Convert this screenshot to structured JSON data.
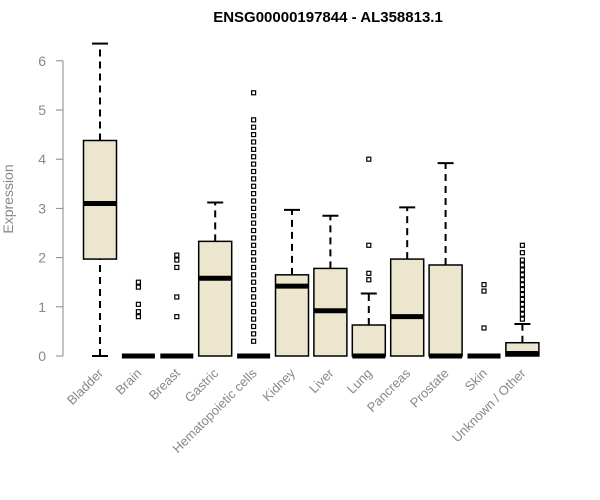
{
  "chart_data": {
    "type": "box",
    "title": "ENSG00000197844 - AL358813.1",
    "ylabel": "Expression",
    "xlabel": "",
    "ylim": [
      0,
      6.3
    ],
    "yticks": [
      0,
      1,
      2,
      3,
      4,
      5,
      6
    ],
    "box_fill": "#EDE6CF",
    "box_stroke": "#000000",
    "categories": [
      "Bladder",
      "Brain",
      "Breast",
      "Gastric",
      "Hematopoietic cells",
      "Kidney",
      "Liver",
      "Lung",
      "Pancreas",
      "Prostate",
      "Skin",
      "Unknown / Other"
    ],
    "boxes": [
      {
        "category": "Bladder",
        "min": 0.0,
        "q1": 1.97,
        "median": 3.1,
        "q3": 4.38,
        "max": 6.35,
        "outliers": []
      },
      {
        "category": "Brain",
        "min": 0.0,
        "q1": 0.0,
        "median": 0.0,
        "q3": 0.0,
        "max": 0.0,
        "outliers": [
          0.8,
          0.9,
          1.05,
          1.4,
          1.5
        ]
      },
      {
        "category": "Breast",
        "min": 0.0,
        "q1": 0.0,
        "median": 0.0,
        "q3": 0.0,
        "max": 0.0,
        "outliers": [
          0.8,
          1.2,
          1.8,
          1.95,
          2.05
        ]
      },
      {
        "category": "Gastric",
        "min": 0.0,
        "q1": 0.0,
        "median": 1.58,
        "q3": 2.33,
        "max": 3.12,
        "outliers": []
      },
      {
        "category": "Hematopoietic cells",
        "min": 0.0,
        "q1": 0.0,
        "median": 0.0,
        "q3": 0.0,
        "max": 0.0,
        "outliers": [
          0.3,
          0.45,
          0.6,
          0.75,
          0.9,
          1.05,
          1.2,
          1.35,
          1.5,
          1.65,
          1.8,
          1.95,
          2.1,
          2.25,
          2.4,
          2.55,
          2.7,
          2.85,
          3.0,
          3.15,
          3.3,
          3.45,
          3.6,
          3.75,
          3.9,
          4.05,
          4.2,
          4.35,
          4.5,
          4.65,
          4.8,
          5.35
        ]
      },
      {
        "category": "Kidney",
        "min": 0.0,
        "q1": 0.0,
        "median": 1.42,
        "q3": 1.65,
        "max": 2.97,
        "outliers": []
      },
      {
        "category": "Liver",
        "min": 0.0,
        "q1": 0.0,
        "median": 0.92,
        "q3": 1.78,
        "max": 2.85,
        "outliers": []
      },
      {
        "category": "Lung",
        "min": 0.0,
        "q1": 0.0,
        "median": 0.0,
        "q3": 0.63,
        "max": 1.27,
        "outliers": [
          1.55,
          1.68,
          2.25,
          4.0
        ]
      },
      {
        "category": "Pancreas",
        "min": 0.0,
        "q1": 0.0,
        "median": 0.8,
        "q3": 1.97,
        "max": 3.02,
        "outliers": []
      },
      {
        "category": "Prostate",
        "min": 0.0,
        "q1": 0.0,
        "median": 0.0,
        "q3": 1.85,
        "max": 3.92,
        "outliers": []
      },
      {
        "category": "Skin",
        "min": 0.0,
        "q1": 0.0,
        "median": 0.0,
        "q3": 0.0,
        "max": 0.0,
        "outliers": [
          0.57,
          1.32,
          1.45
        ]
      },
      {
        "category": "Unknown / Other",
        "min": 0.0,
        "q1": 0.0,
        "median": 0.05,
        "q3": 0.27,
        "max": 0.65,
        "outliers": [
          0.75,
          0.85,
          0.95,
          1.05,
          1.15,
          1.25,
          1.35,
          1.45,
          1.55,
          1.65,
          1.75,
          1.85,
          1.95,
          2.1,
          2.25
        ]
      }
    ]
  }
}
